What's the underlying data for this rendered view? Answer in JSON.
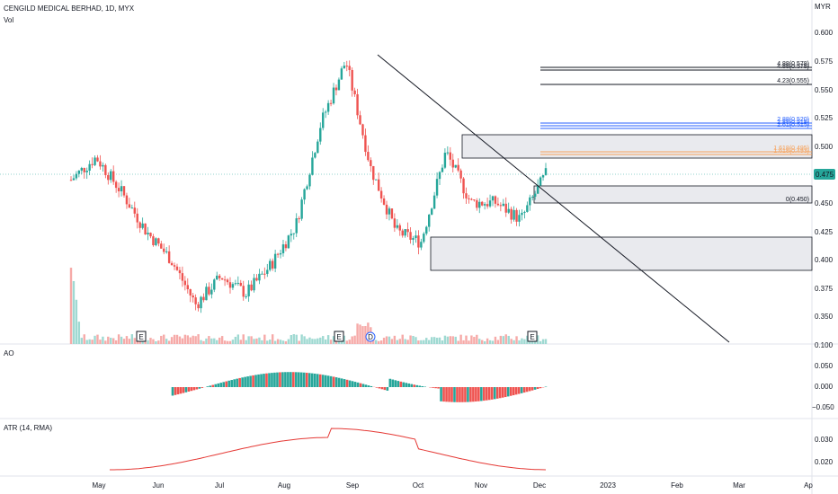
{
  "header": {
    "symbol_line": "CENGILD MEDICAL BERHAD, 1D, MYX",
    "volume_label": "Vol",
    "currency": "MYR"
  },
  "price_axis": [
    "0.600",
    "0.575",
    "0.550",
    "0.525",
    "0.500",
    "0.475",
    "0.450",
    "0.425",
    "0.400",
    "0.375",
    "0.350",
    "0.100"
  ],
  "price_badge": "0.475",
  "x_axis": [
    "May",
    "Jun",
    "Jul",
    "Aug",
    "Sep",
    "Oct",
    "Nov",
    "Dec",
    "2023",
    "Feb",
    "Mar",
    "Ap"
  ],
  "fib_levels": [
    {
      "label": "4.88(0.578)",
      "color": "#131722"
    },
    {
      "label": "4.88(0.578)",
      "color": "#131722"
    },
    {
      "label": "4.23(0.555)",
      "color": "#131722"
    },
    {
      "label": "2.88(0.520)",
      "color": "#2962ff"
    },
    {
      "label": "2.88(0.518)",
      "color": "#2962ff"
    },
    {
      "label": "2.61(0.515)",
      "color": "#2962ff"
    },
    {
      "label": "1.618(0.495)",
      "color": "#f7a35c"
    },
    {
      "label": "1.618(0.493)",
      "color": "#f7a35c"
    },
    {
      "label": "0(0.450)",
      "color": "#131722"
    }
  ],
  "event_markers": [
    "E",
    "E",
    "D",
    "E"
  ],
  "ao": {
    "label": "AO",
    "axis": [
      "0.050",
      "0.000",
      "−0.050"
    ]
  },
  "atr": {
    "label": "ATR (14, RMA)",
    "axis": [
      "0.030",
      "0.020"
    ]
  },
  "colors": {
    "up": "#26a69a",
    "down": "#ef5350",
    "trend": "#131722",
    "atr_line": "#e53935"
  },
  "chart_data": {
    "type": "candlestick",
    "title": "CENGILD MEDICAL BERHAD, 1D, MYX",
    "ylabel": "MYR",
    "ylim": [
      0.33,
      0.61
    ],
    "x_range": [
      "Apr 2022",
      "Apr 2023"
    ],
    "last_price": 0.475,
    "price_path": [
      {
        "x": "Apr",
        "y": 0.47
      },
      {
        "x": "late Apr",
        "y": 0.49
      },
      {
        "x": "May",
        "y": 0.46
      },
      {
        "x": "mid May",
        "y": 0.425
      },
      {
        "x": "Jun",
        "y": 0.4
      },
      {
        "x": "mid Jun",
        "y": 0.36
      },
      {
        "x": "Jul",
        "y": 0.385
      },
      {
        "x": "mid Jul",
        "y": 0.37
      },
      {
        "x": "Aug",
        "y": 0.395
      },
      {
        "x": "mid Aug",
        "y": 0.43
      },
      {
        "x": "Sep",
        "y": 0.52
      },
      {
        "x": "mid Sep",
        "y": 0.575
      },
      {
        "x": "late Sep",
        "y": 0.48
      },
      {
        "x": "Oct",
        "y": 0.425
      },
      {
        "x": "mid Oct",
        "y": 0.415
      },
      {
        "x": "late Oct",
        "y": 0.495
      },
      {
        "x": "Nov",
        "y": 0.45
      },
      {
        "x": "mid Nov",
        "y": 0.45
      },
      {
        "x": "late Nov",
        "y": 0.435
      },
      {
        "x": "Dec",
        "y": 0.475
      }
    ],
    "zones": [
      {
        "from": 0.488,
        "to": 0.508
      },
      {
        "from": 0.45,
        "to": 0.465
      },
      {
        "from": 0.39,
        "to": 0.42
      }
    ],
    "trendline": {
      "from": {
        "x": "mid Sep",
        "y": 0.578
      },
      "to": {
        "x": "Mar",
        "y": 0.33
      }
    },
    "fib_values": [
      0.578,
      0.578,
      0.555,
      0.52,
      0.518,
      0.515,
      0.495,
      0.493,
      0.45
    ],
    "ao_range": [
      -0.05,
      0.05
    ],
    "atr_range": [
      0.015,
      0.035
    ]
  }
}
